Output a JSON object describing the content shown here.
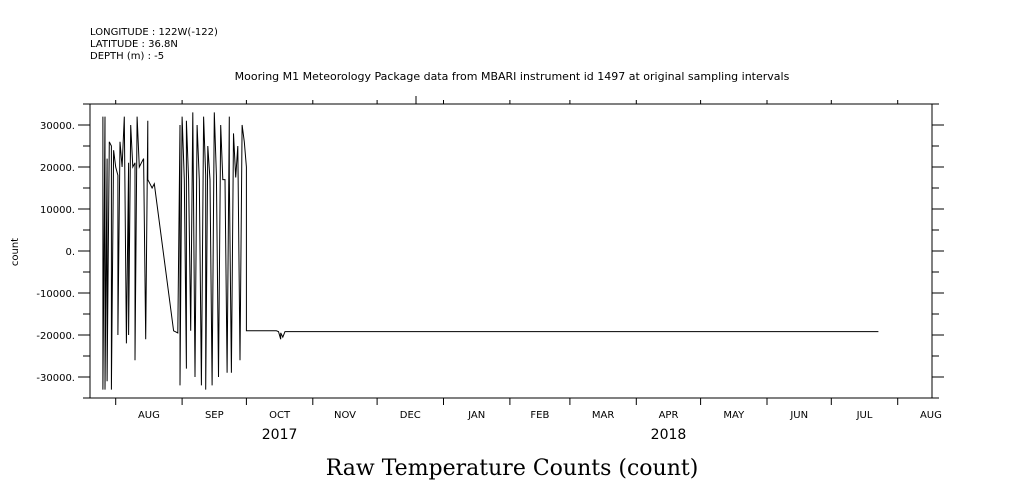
{
  "header": {
    "longitude": "LONGITUDE : 122W(-122)",
    "latitude": "LATITUDE : 36.8N",
    "depth": "DEPTH (m) : -5"
  },
  "chart_data": {
    "type": "line",
    "title": "Mooring M1 Meteorology Package data from MBARI instrument id 1497 at original sampling intervals",
    "xlabel": "Raw Temperature Counts (count)",
    "ylabel": "count",
    "ylim": [
      -35000,
      35000
    ],
    "y_ticks": [
      30000,
      20000,
      10000,
      0,
      -10000,
      -20000,
      -30000
    ],
    "y_tick_labels": [
      "30000.",
      "20000.",
      "10000.",
      "0.",
      "-10000.",
      "-20000.",
      "-30000."
    ],
    "x_range": [
      "2017-07-20",
      "2018-08-17"
    ],
    "x_month_ticks": [
      "2017-08-01",
      "2017-09-01",
      "2017-10-01",
      "2017-11-01",
      "2017-12-01",
      "2018-01-01",
      "2018-02-01",
      "2018-03-01",
      "2018-04-01",
      "2018-05-01",
      "2018-06-01",
      "2018-07-01",
      "2018-08-01"
    ],
    "x_tick_labels": [
      "AUG",
      "SEP",
      "OCT",
      "NOV",
      "DEC",
      "JAN",
      "FEB",
      "MAR",
      "APR",
      "MAY",
      "JUN",
      "JUL",
      "AUG"
    ],
    "year_labels": [
      {
        "label": "2017",
        "date": "2017-10-01"
      },
      {
        "label": "2018",
        "date": "2018-04-01"
      }
    ],
    "grid": false,
    "series": [
      {
        "color": "#000000",
        "x": [
          "2017-07-26",
          "2017-07-26",
          "2017-07-27",
          "2017-07-27",
          "2017-07-28",
          "2017-07-28",
          "2017-07-29",
          "2017-07-30",
          "2017-07-30",
          "2017-07-31",
          "2017-08-01",
          "2017-08-02",
          "2017-08-02",
          "2017-08-03",
          "2017-08-04",
          "2017-08-05",
          "2017-08-06",
          "2017-08-07",
          "2017-08-07",
          "2017-08-08",
          "2017-08-09",
          "2017-08-10",
          "2017-08-10",
          "2017-08-11",
          "2017-08-12",
          "2017-08-13",
          "2017-08-14",
          "2017-08-15",
          "2017-08-16",
          "2017-08-16",
          "2017-08-17",
          "2017-08-18",
          "2017-08-19",
          "2017-08-28",
          "2017-08-30",
          "2017-08-31",
          "2017-08-31",
          "2017-09-01",
          "2017-09-02",
          "2017-09-03",
          "2017-09-03",
          "2017-09-04",
          "2017-09-05",
          "2017-09-06",
          "2017-09-07",
          "2017-09-08",
          "2017-09-09",
          "2017-09-10",
          "2017-09-11",
          "2017-09-12",
          "2017-09-12",
          "2017-09-13",
          "2017-09-14",
          "2017-09-15",
          "2017-09-16",
          "2017-09-17",
          "2017-09-18",
          "2017-09-19",
          "2017-09-20",
          "2017-09-21",
          "2017-09-22",
          "2017-09-23",
          "2017-09-23",
          "2017-09-24",
          "2017-09-25",
          "2017-09-26",
          "2017-09-27",
          "2017-09-28",
          "2017-09-29",
          "2017-09-30",
          "2017-10-01",
          "2017-10-01",
          "2017-10-15",
          "2017-10-16",
          "2017-10-17",
          "2017-10-17",
          "2017-10-18",
          "2017-10-19",
          "2018-07-23"
        ],
        "y": [
          32000,
          -33000,
          32000,
          -33000,
          22000,
          -31000,
          26000,
          25000,
          -33000,
          24000,
          20000,
          18000,
          -20000,
          26000,
          20000,
          32000,
          -22000,
          21000,
          -20000,
          30000,
          20000,
          21000,
          -26000,
          32000,
          20000,
          21000,
          22000,
          -21000,
          31000,
          17000,
          16000,
          15000,
          16000,
          -19000,
          -19500,
          30000,
          -32000,
          32000,
          17000,
          -28000,
          31000,
          17000,
          -19000,
          33000,
          -30000,
          30000,
          17000,
          -32000,
          32000,
          18000,
          -33000,
          25000,
          17000,
          -32000,
          33000,
          18000,
          -30000,
          30000,
          17000,
          17000,
          -29000,
          32000,
          18000,
          -29000,
          28000,
          17500,
          25000,
          -26000,
          30000,
          26000,
          20000,
          -19000,
          -19000,
          -19200,
          -21000,
          -19500,
          -20500,
          -19200,
          -19200
        ]
      }
    ]
  }
}
